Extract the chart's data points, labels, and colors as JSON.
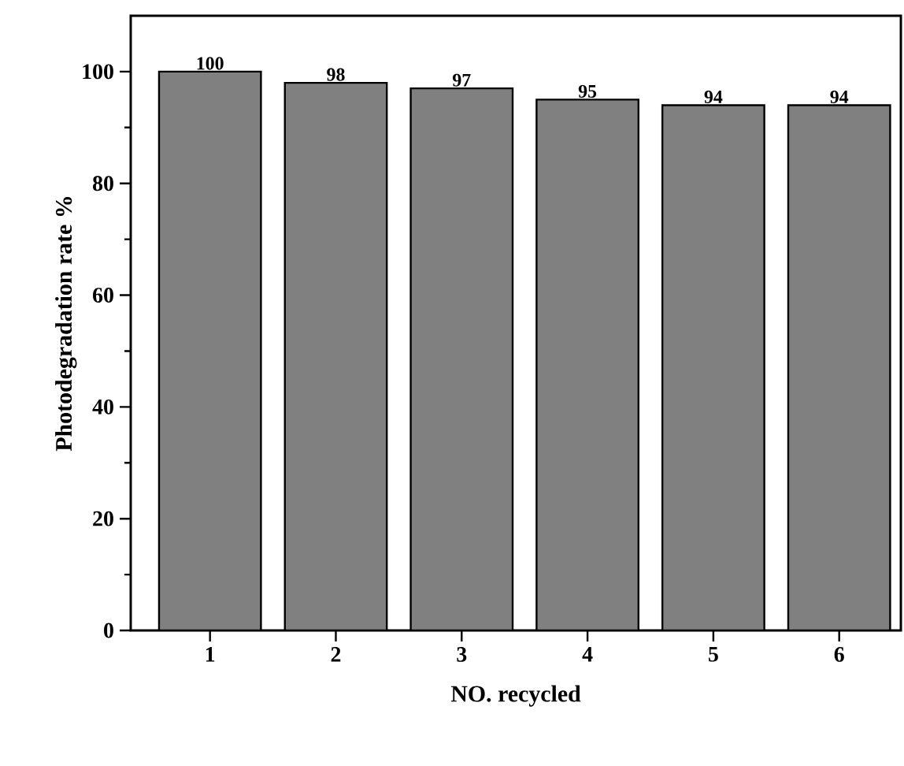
{
  "chart_data": {
    "type": "bar",
    "xlabel": "NO. recycled",
    "ylabel": "Photodegradation rate %",
    "categories": [
      "1",
      "2",
      "3",
      "4",
      "5",
      "6"
    ],
    "values": [
      100,
      98,
      97,
      95,
      94,
      94
    ],
    "color": "#808080",
    "ylim": [
      0,
      110
    ],
    "yticks": [
      0,
      20,
      40,
      60,
      80,
      100
    ],
    "data_labels": true
  }
}
